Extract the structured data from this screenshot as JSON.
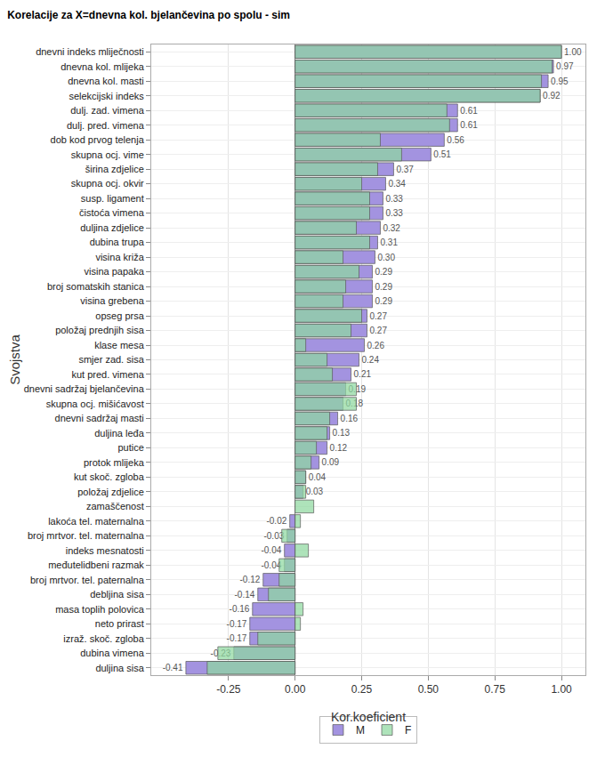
{
  "chart_data": {
    "type": "bar",
    "orientation": "horizontal",
    "title": "Korelacije za X=dnevna kol. bjelančevina po spolu - sim",
    "xlabel": "Kor.koeficient",
    "ylabel": "Svojstva",
    "categories": [
      "dnevni indeks mliječnosti",
      "dnevna kol. mlijeka",
      "dnevna kol. masti",
      "selekcijski indeks",
      "dulj. zad. vimena",
      "dulj. pred. vimena",
      "dob kod prvog telenja",
      "skupna ocj. vime",
      "širina zdjelice",
      "skupna ocj. okvir",
      "susp. ligament",
      "čistoća vimena",
      "duljina zdjelice",
      "dubina trupa",
      "visina križa",
      "visina papaka",
      "broj somatskih stanica",
      "visina grebena",
      "opseg prsa",
      "položaj prednjih sisa",
      "klase mesa",
      "smjer zad. sisa",
      "kut pred. vimena",
      "dnevni sadržaj bjelančevina",
      "skupna ocj. mišićavost",
      "dnevni sadržaj masti",
      "duljina leđa",
      "putice",
      "protok mlijeka",
      "kut skoč. zgloba",
      "položaj zdjelice",
      "zamaščenost",
      "lakoća tel. maternalna",
      "broj mrtvor. tel. maternalna",
      "indeks mesnatosti",
      "međutelidbeni razmak",
      "broj mrtvor. tel. paternalna",
      "debljina sisa",
      "masa toplih polovica",
      "neto prirast",
      "izraž. skoč. zgloba",
      "dubina vimena",
      "duljina sisa"
    ],
    "series": [
      {
        "name": "M",
        "color": "#a393e0",
        "values": [
          1.0,
          0.97,
          0.95,
          0.92,
          0.61,
          0.61,
          0.56,
          0.51,
          0.37,
          0.34,
          0.33,
          0.33,
          0.32,
          0.31,
          0.3,
          0.29,
          0.29,
          0.29,
          0.27,
          0.27,
          0.26,
          0.24,
          0.21,
          0.19,
          0.18,
          0.16,
          0.13,
          0.12,
          0.09,
          0.04,
          0.03,
          null,
          -0.02,
          -0.03,
          -0.04,
          -0.04,
          -0.12,
          -0.14,
          -0.16,
          -0.17,
          -0.17,
          -0.23,
          -0.41
        ],
        "value_labels": [
          "1.00",
          "0.97",
          "0.95",
          "0.92",
          "0.61",
          "0.61",
          "0.56",
          "0.51",
          "0.37",
          "0.34",
          "0.33",
          "0.33",
          "0.32",
          "0.31",
          "0.30",
          "0.29",
          "0.29",
          "0.29",
          "0.27",
          "0.27",
          "0.26",
          "0.24",
          "0.21",
          "0.19",
          "0.18",
          "0.16",
          "0.13",
          "0.12",
          "0.09",
          "0.04",
          "0.03",
          null,
          "-0.02",
          "-0.03",
          "-0.04",
          "-0.04",
          "-0.12",
          "-0.14",
          "-0.16",
          "-0.17",
          "-0.17",
          "-0.23",
          "-0.41"
        ]
      },
      {
        "name": "F",
        "color": "#8fd8a0",
        "values": [
          1.0,
          0.965,
          0.925,
          0.92,
          0.57,
          0.58,
          0.32,
          0.4,
          0.31,
          0.25,
          0.28,
          0.28,
          0.23,
          0.28,
          0.18,
          0.24,
          0.19,
          0.18,
          0.25,
          0.21,
          0.04,
          0.12,
          0.14,
          0.23,
          0.23,
          0.13,
          0.12,
          0.08,
          0.06,
          0.04,
          0.04,
          0.07,
          0.02,
          -0.05,
          0.05,
          -0.06,
          -0.06,
          -0.1,
          0.03,
          0.02,
          -0.14,
          -0.29,
          -0.33
        ]
      }
    ],
    "xlim": [
      -0.54,
      1.09
    ],
    "xticks": [
      {
        "value": -0.25,
        "label": "-0.25"
      },
      {
        "value": 0,
        "label": "0.00"
      },
      {
        "value": 0.25,
        "label": "0.25"
      },
      {
        "value": 0.5,
        "label": "0.50"
      },
      {
        "value": 0.75,
        "label": "0.75"
      },
      {
        "value": 1,
        "label": "1.00"
      }
    ],
    "grid": true,
    "legend": "bottom",
    "data_labels": true
  }
}
